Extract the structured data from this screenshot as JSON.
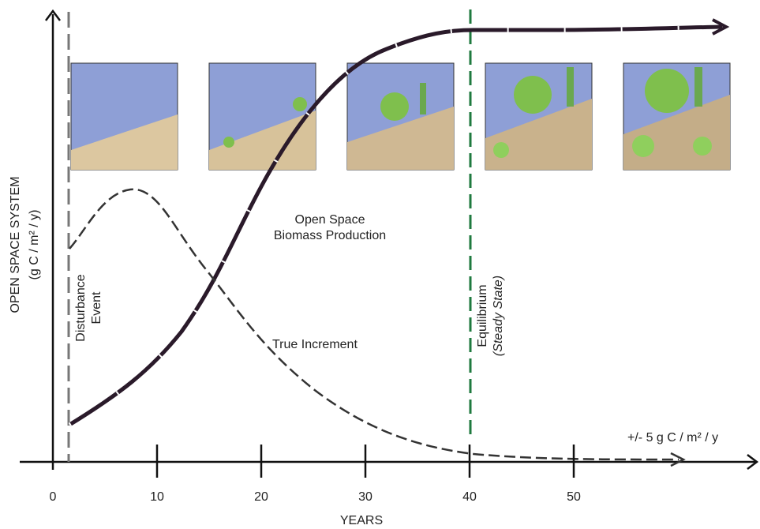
{
  "axis": {
    "y_label": "OPEN SPACE SYSTEM",
    "y_unit": "(g C / m² / y)",
    "x_label": "YEARS",
    "x_ticks": [
      0,
      10,
      20,
      30,
      40,
      50
    ]
  },
  "labels": {
    "disturbance": [
      "Disturbance",
      "Event"
    ],
    "biomass": [
      "Open Space",
      "Biomass Production"
    ],
    "increment": "True Increment",
    "equilibrium": [
      "Equilibrium",
      "(Steady State)"
    ],
    "tolerance": "+/- 5 g C / m² / y"
  }
}
